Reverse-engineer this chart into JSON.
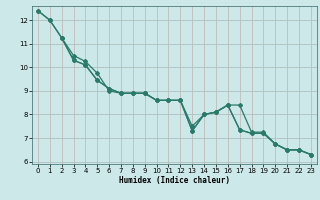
{
  "xlabel": "Humidex (Indice chaleur)",
  "bg_color": "#cce8e8",
  "grid_color_teal": "#99cccc",
  "grid_color_red": "#e8aaaa",
  "line_color": "#2a7a6a",
  "xlim": [
    -0.5,
    23.5
  ],
  "ylim": [
    5.9,
    12.6
  ],
  "xticks": [
    0,
    1,
    2,
    3,
    4,
    5,
    6,
    7,
    8,
    9,
    10,
    11,
    12,
    13,
    14,
    15,
    16,
    17,
    18,
    19,
    20,
    21,
    22,
    23
  ],
  "yticks": [
    6,
    7,
    8,
    9,
    10,
    11,
    12
  ],
  "line_a_x": [
    0,
    1,
    2,
    3,
    4,
    5,
    6,
    7,
    8,
    9,
    10,
    11,
    12,
    13,
    14,
    15,
    16,
    17,
    18,
    19,
    20,
    21,
    22,
    23
  ],
  "line_a_y": [
    12.4,
    12.0,
    11.25,
    10.5,
    10.25,
    9.75,
    9.0,
    8.9,
    8.9,
    8.9,
    8.6,
    8.6,
    8.6,
    7.5,
    8.0,
    8.1,
    8.4,
    8.4,
    7.25,
    7.25,
    6.75,
    6.5,
    6.5,
    6.3
  ],
  "line_b_x": [
    0,
    1,
    2,
    3,
    4,
    5,
    6,
    7,
    8,
    9,
    10,
    11,
    12,
    13,
    14,
    15,
    16,
    17,
    18,
    19,
    20,
    21,
    22,
    23
  ],
  "line_b_y": [
    12.4,
    12.0,
    11.25,
    10.3,
    10.1,
    9.45,
    9.1,
    8.9,
    8.9,
    8.9,
    8.6,
    8.6,
    8.6,
    7.3,
    8.0,
    8.1,
    8.4,
    7.35,
    7.2,
    7.2,
    6.75,
    6.5,
    6.5,
    6.3
  ],
  "line_c_x": [
    2,
    3,
    4,
    5,
    6,
    7,
    8,
    9,
    10,
    11,
    12,
    13,
    14,
    15,
    16,
    17,
    18,
    19,
    20,
    21,
    22,
    23
  ],
  "line_c_y": [
    11.25,
    10.3,
    10.1,
    9.45,
    9.1,
    8.9,
    8.9,
    8.9,
    8.6,
    8.6,
    8.6,
    7.3,
    8.0,
    8.1,
    8.4,
    7.35,
    7.2,
    7.2,
    6.75,
    6.5,
    6.5,
    6.3
  ]
}
